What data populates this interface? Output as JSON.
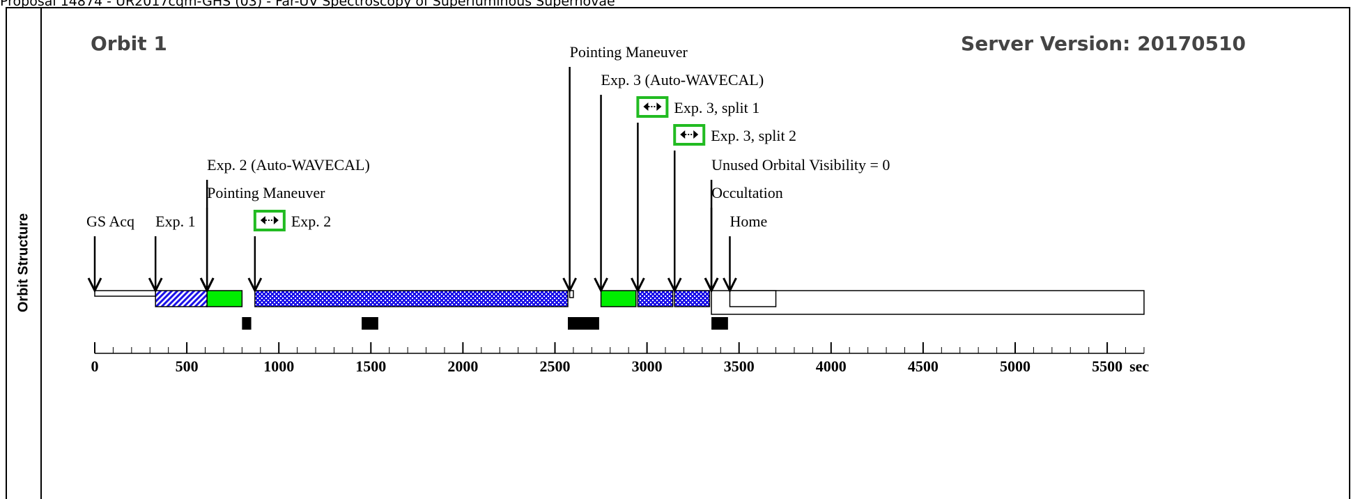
{
  "page_title": "Proposal 14874 - UR2017cqm-GHS (03) - Far-UV Spectroscopy of Superluminous Supernovae",
  "side_label": "Orbit Structure",
  "orbit_title": "Orbit 1",
  "server_version": "Server Version: 20170510",
  "axis": {
    "ticks": [
      "0",
      "500",
      "1000",
      "1500",
      "2000",
      "2500",
      "3000",
      "3500",
      "4000",
      "4500",
      "5000",
      "5500"
    ],
    "unit": "sec",
    "range": [
      0,
      5700
    ]
  },
  "events": [
    {
      "label": "GS Acq",
      "t": 0
    },
    {
      "label": "Exp. 1",
      "t": 330
    },
    {
      "label": "Exp. 2 (Auto-WAVECAL)",
      "t": 610
    },
    {
      "label": "Pointing Maneuver",
      "t": 610
    },
    {
      "label": "Exp. 2",
      "t": 870,
      "readout_icon": true
    },
    {
      "label": "Pointing Maneuver",
      "t": 2580
    },
    {
      "label": "Exp. 3 (Auto-WAVECAL)",
      "t": 2750
    },
    {
      "label": "Exp. 3, split 1",
      "t": 2950,
      "readout_icon": true
    },
    {
      "label": "Exp. 3, split 2",
      "t": 3150,
      "readout_icon": true
    },
    {
      "label": "Unused Orbital Visibility = 0",
      "t": 3350
    },
    {
      "label": "Occultation",
      "t": 3350
    },
    {
      "label": "Home",
      "t": 3450
    }
  ],
  "segments": [
    {
      "name": "gs-acq",
      "start": 0,
      "end": 330,
      "fill": "white",
      "low": true
    },
    {
      "name": "exp-1",
      "start": 330,
      "end": 610,
      "fill": "hatch"
    },
    {
      "name": "exp-2-wavecal",
      "start": 610,
      "end": 800,
      "fill": "green"
    },
    {
      "name": "exp-2",
      "start": 870,
      "end": 2570,
      "fill": "dots"
    },
    {
      "name": "pointing-maneuver",
      "start": 2580,
      "end": 2600,
      "fill": "white",
      "small": true
    },
    {
      "name": "exp-3-wavecal",
      "start": 2750,
      "end": 2940,
      "fill": "green"
    },
    {
      "name": "exp-3-split-1",
      "start": 2950,
      "end": 3140,
      "fill": "dots"
    },
    {
      "name": "exp-3-split-2",
      "start": 3150,
      "end": 3340,
      "fill": "dots"
    },
    {
      "name": "unused-visibility",
      "start": 3450,
      "end": 3700,
      "fill": "white"
    },
    {
      "name": "occultation",
      "start": 3350,
      "end": 5700,
      "fill": "white",
      "back": true
    }
  ],
  "blocks": [
    {
      "start": 800,
      "end": 850
    },
    {
      "start": 1450,
      "end": 1540
    },
    {
      "start": 2570,
      "end": 2740
    },
    {
      "start": 3350,
      "end": 3440
    }
  ],
  "colors": {
    "green": "#00ee00",
    "blue": "#1a10e8",
    "icon_border": "#22bb22"
  }
}
